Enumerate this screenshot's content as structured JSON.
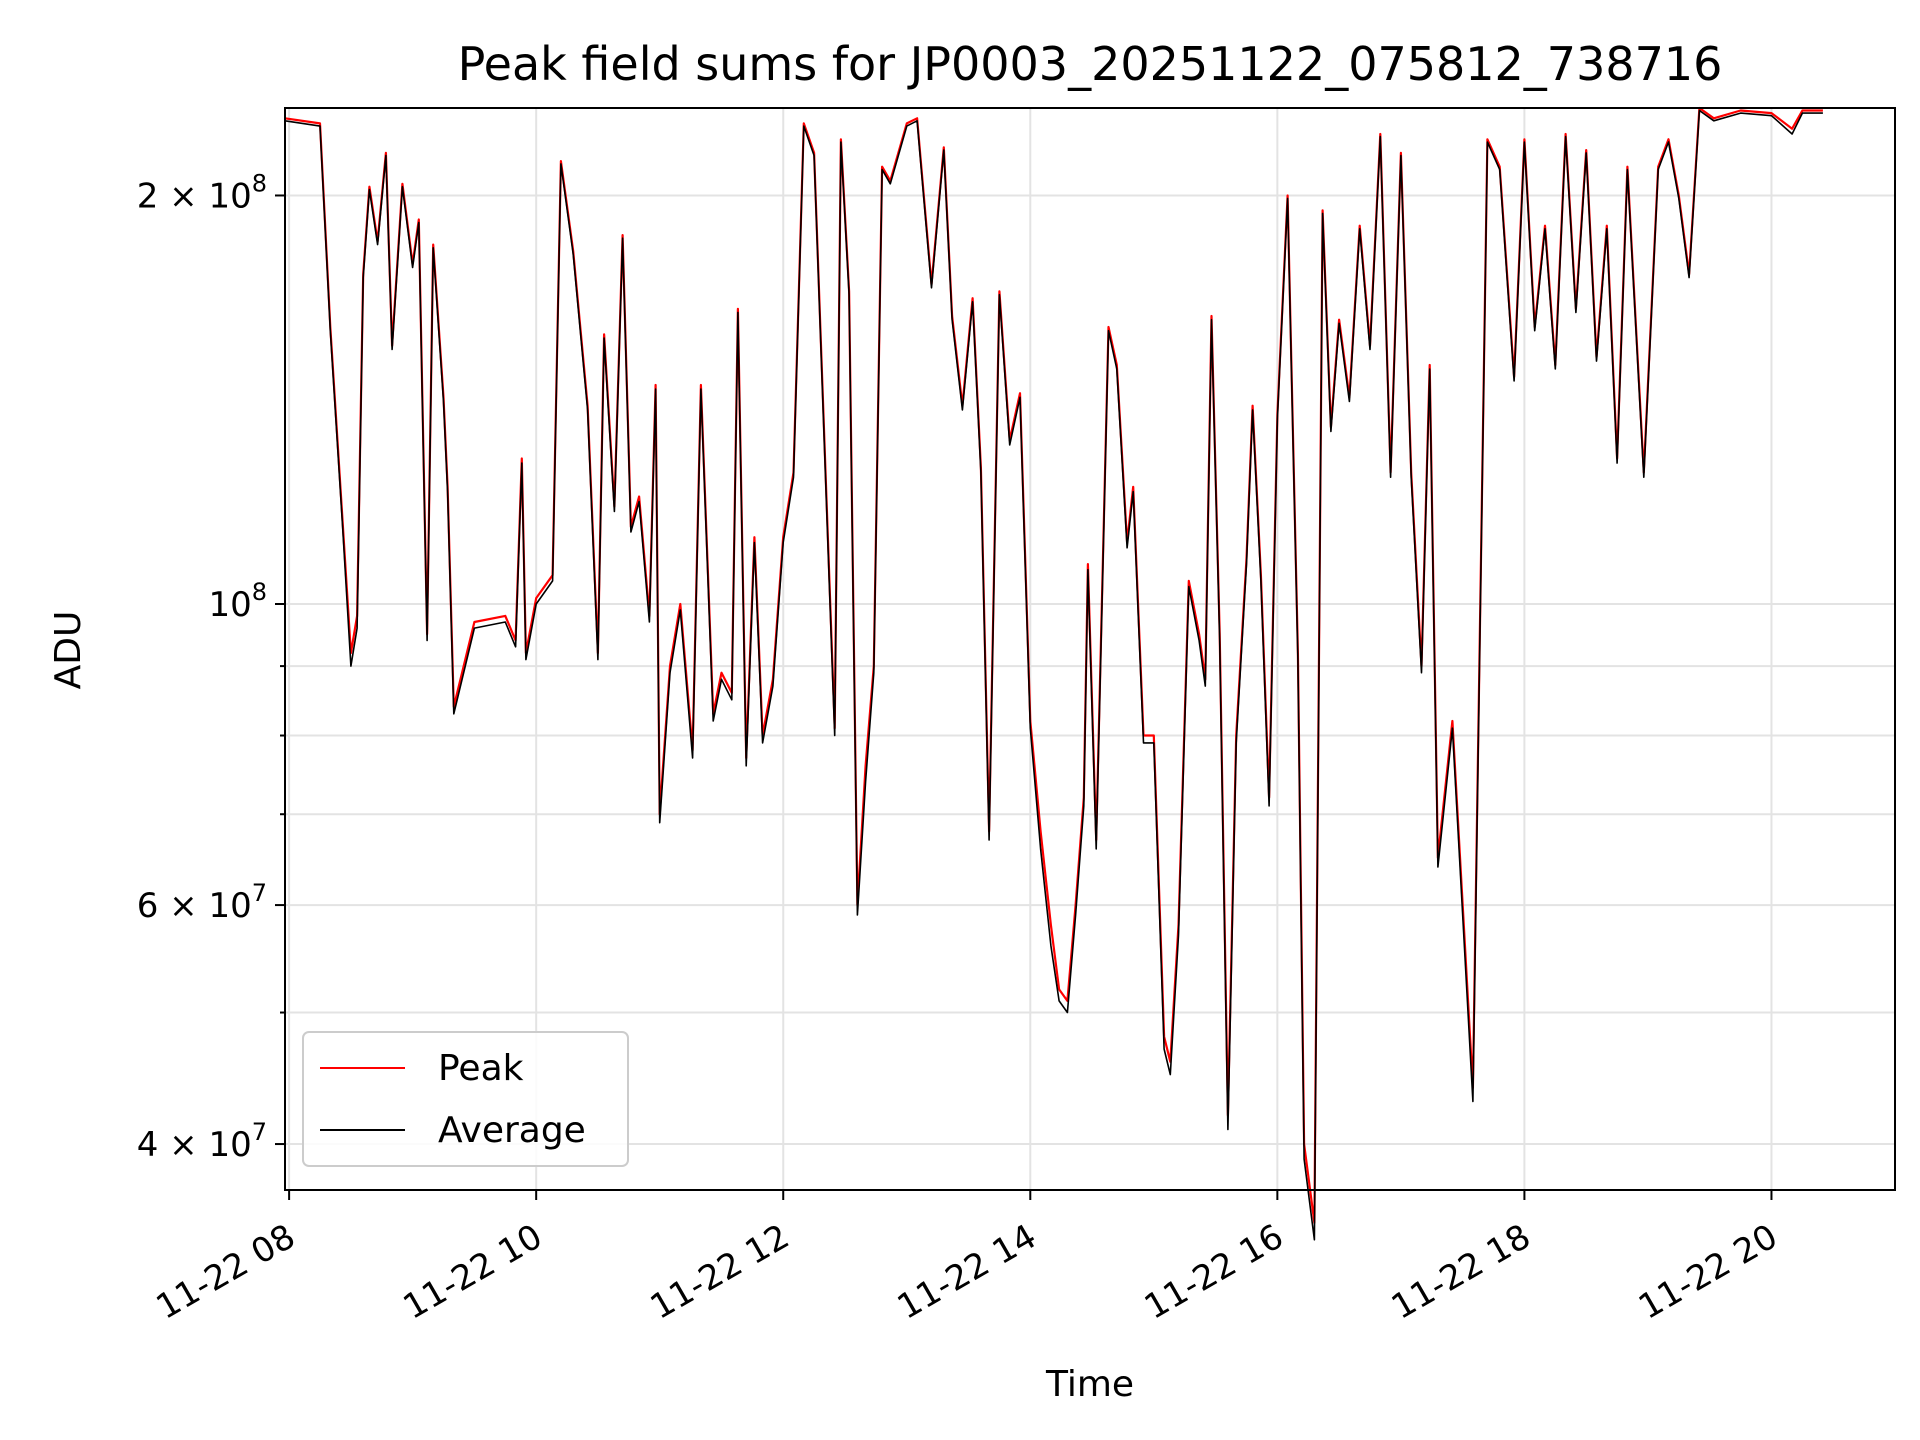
{
  "chart_data": {
    "type": "line",
    "title": "Peak field sums for JP0003_20251122_075812_738716",
    "xlabel": "Time",
    "ylabel": "ADU",
    "x_scale": "time",
    "y_scale": "log",
    "xlim": [
      "2025-11-22 07:58",
      "2025-11-22 21:00"
    ],
    "ylim": [
      37000000,
      232000000
    ],
    "grid": true,
    "legend_position": "lower-left",
    "x_ticks": [
      {
        "value": "2025-11-22 08:00",
        "label": "11-22 08"
      },
      {
        "value": "2025-11-22 10:00",
        "label": "11-22 10"
      },
      {
        "value": "2025-11-22 12:00",
        "label": "11-22 12"
      },
      {
        "value": "2025-11-22 14:00",
        "label": "11-22 14"
      },
      {
        "value": "2025-11-22 16:00",
        "label": "11-22 16"
      },
      {
        "value": "2025-11-22 18:00",
        "label": "11-22 18"
      },
      {
        "value": "2025-11-22 20:00",
        "label": "11-22 20"
      }
    ],
    "y_ticks": [
      {
        "value": 40000000,
        "base": "4 × 10",
        "exp": "7"
      },
      {
        "value": 60000000,
        "base": "6 × 10",
        "exp": "7"
      },
      {
        "value": 100000000,
        "base": "10",
        "exp": "8"
      },
      {
        "value": 200000000,
        "base": "2 × 10",
        "exp": "8"
      }
    ],
    "y_minor_ticks": [
      50000000,
      70000000,
      80000000,
      90000000
    ],
    "series": [
      {
        "name": "Peak",
        "color": "#ff0000",
        "x": [
          "2025-11-22 07:58",
          "2025-11-22 08:15",
          "2025-11-22 08:20",
          "2025-11-22 08:26",
          "2025-11-22 08:30",
          "2025-11-22 08:33",
          "2025-11-22 08:36",
          "2025-11-22 08:39",
          "2025-11-22 08:43",
          "2025-11-22 08:47",
          "2025-11-22 08:50",
          "2025-11-22 08:55",
          "2025-11-22 09:00",
          "2025-11-22 09:03",
          "2025-11-22 09:07",
          "2025-11-22 09:10",
          "2025-11-22 09:15",
          "2025-11-22 09:17",
          "2025-11-22 09:20",
          "2025-11-22 09:30",
          "2025-11-22 09:45",
          "2025-11-22 09:50",
          "2025-11-22 09:53",
          "2025-11-22 09:55",
          "2025-11-22 10:00",
          "2025-11-22 10:08",
          "2025-11-22 10:12",
          "2025-11-22 10:18",
          "2025-11-22 10:25",
          "2025-11-22 10:30",
          "2025-11-22 10:33",
          "2025-11-22 10:38",
          "2025-11-22 10:42",
          "2025-11-22 10:46",
          "2025-11-22 10:50",
          "2025-11-22 10:55",
          "2025-11-22 10:58",
          "2025-11-22 11:00",
          "2025-11-22 11:05",
          "2025-11-22 11:10",
          "2025-11-22 11:16",
          "2025-11-22 11:20",
          "2025-11-22 11:26",
          "2025-11-22 11:30",
          "2025-11-22 11:35",
          "2025-11-22 11:38",
          "2025-11-22 11:42",
          "2025-11-22 11:46",
          "2025-11-22 11:50",
          "2025-11-22 11:55",
          "2025-11-22 12:00",
          "2025-11-22 12:05",
          "2025-11-22 12:10",
          "2025-11-22 12:15",
          "2025-11-22 12:25",
          "2025-11-22 12:28",
          "2025-11-22 12:32",
          "2025-11-22 12:36",
          "2025-11-22 12:40",
          "2025-11-22 12:44",
          "2025-11-22 12:48",
          "2025-11-22 12:52",
          "2025-11-22 13:00",
          "2025-11-22 13:05",
          "2025-11-22 13:12",
          "2025-11-22 13:18",
          "2025-11-22 13:22",
          "2025-11-22 13:27",
          "2025-11-22 13:32",
          "2025-11-22 13:36",
          "2025-11-22 13:40",
          "2025-11-22 13:45",
          "2025-11-22 13:50",
          "2025-11-22 13:55",
          "2025-11-22 14:00",
          "2025-11-22 14:05",
          "2025-11-22 14:10",
          "2025-11-22 14:14",
          "2025-11-22 14:18",
          "2025-11-22 14:22",
          "2025-11-22 14:26",
          "2025-11-22 14:28",
          "2025-11-22 14:32",
          "2025-11-22 14:38",
          "2025-11-22 14:42",
          "2025-11-22 14:47",
          "2025-11-22 14:50",
          "2025-11-22 14:55",
          "2025-11-22 15:00",
          "2025-11-22 15:05",
          "2025-11-22 15:08",
          "2025-11-22 15:12",
          "2025-11-22 15:17",
          "2025-11-22 15:22",
          "2025-11-22 15:25",
          "2025-11-22 15:28",
          "2025-11-22 15:32",
          "2025-11-22 15:36",
          "2025-11-22 15:40",
          "2025-11-22 15:45",
          "2025-11-22 15:48",
          "2025-11-22 15:52",
          "2025-11-22 15:56",
          "2025-11-22 16:00",
          "2025-11-22 16:05",
          "2025-11-22 16:10",
          "2025-11-22 16:13",
          "2025-11-22 16:18",
          "2025-11-22 16:22",
          "2025-11-22 16:26",
          "2025-11-22 16:30",
          "2025-11-22 16:35",
          "2025-11-22 16:40",
          "2025-11-22 16:45",
          "2025-11-22 16:50",
          "2025-11-22 16:55",
          "2025-11-22 17:00",
          "2025-11-22 17:05",
          "2025-11-22 17:10",
          "2025-11-22 17:14",
          "2025-11-22 17:18",
          "2025-11-22 17:25",
          "2025-11-22 17:35",
          "2025-11-22 17:42",
          "2025-11-22 17:48",
          "2025-11-22 17:55",
          "2025-11-22 18:00",
          "2025-11-22 18:05",
          "2025-11-22 18:10",
          "2025-11-22 18:15",
          "2025-11-22 18:20",
          "2025-11-22 18:25",
          "2025-11-22 18:30",
          "2025-11-22 18:35",
          "2025-11-22 18:40",
          "2025-11-22 18:45",
          "2025-11-22 18:50",
          "2025-11-22 18:58",
          "2025-11-22 19:05",
          "2025-11-22 19:10",
          "2025-11-22 19:15",
          "2025-11-22 19:20",
          "2025-11-22 19:25",
          "2025-11-22 19:32",
          "2025-11-22 19:45",
          "2025-11-22 20:00",
          "2025-11-22 20:10",
          "2025-11-22 20:15",
          "2025-11-22 20:25"
        ],
        "y": [
          228000000,
          226000000,
          160000000,
          115000000,
          92000000,
          98000000,
          175000000,
          203000000,
          185000000,
          215000000,
          155000000,
          204000000,
          178000000,
          192000000,
          95000000,
          184000000,
          142000000,
          122000000,
          84000000,
          97000000,
          98000000,
          94000000,
          128000000,
          92000000,
          101000000,
          105000000,
          212000000,
          182000000,
          140000000,
          92000000,
          158000000,
          118000000,
          187000000,
          114000000,
          120000000,
          98000000,
          145000000,
          70000000,
          90000000,
          100000000,
          78000000,
          145000000,
          83000000,
          89000000,
          86000000,
          165000000,
          77000000,
          112000000,
          80000000,
          88000000,
          112000000,
          125000000,
          226000000,
          215000000,
          81000000,
          220000000,
          170000000,
          60000000,
          76000000,
          90000000,
          210000000,
          205000000,
          226000000,
          228000000,
          172000000,
          217000000,
          163000000,
          140000000,
          168000000,
          126000000,
          68000000,
          170000000,
          132000000,
          143000000,
          82000000,
          68000000,
          58000000,
          52000000,
          51000000,
          60000000,
          72000000,
          107000000,
          67000000,
          160000000,
          150000000,
          111000000,
          122000000,
          80000000,
          80000000,
          48000000,
          46000000,
          58000000,
          104000000,
          95000000,
          88000000,
          163000000,
          95000000,
          42000000,
          80000000,
          108000000,
          140000000,
          105000000,
          72000000,
          138000000,
          200000000,
          92000000,
          40000000,
          35000000,
          195000000,
          135000000,
          162000000,
          142000000,
          190000000,
          155000000,
          222000000,
          125000000,
          215000000,
          125000000,
          90000000,
          150000000,
          65000000,
          82000000,
          44000000,
          220000000,
          210000000,
          147000000,
          220000000,
          160000000,
          190000000,
          150000000,
          222000000,
          165000000,
          216000000,
          152000000,
          190000000,
          128000000,
          210000000,
          125000000,
          210000000,
          220000000,
          200000000,
          175000000,
          232000000,
          228000000,
          231000000,
          230000000,
          224000000,
          231000000,
          231000000
        ]
      },
      {
        "name": "Average",
        "color": "#000000",
        "x": [
          "2025-11-22 07:58",
          "2025-11-22 08:15",
          "2025-11-22 08:20",
          "2025-11-22 08:26",
          "2025-11-22 08:30",
          "2025-11-22 08:33",
          "2025-11-22 08:36",
          "2025-11-22 08:39",
          "2025-11-22 08:43",
          "2025-11-22 08:47",
          "2025-11-22 08:50",
          "2025-11-22 08:55",
          "2025-11-22 09:00",
          "2025-11-22 09:03",
          "2025-11-22 09:07",
          "2025-11-22 09:10",
          "2025-11-22 09:15",
          "2025-11-22 09:17",
          "2025-11-22 09:20",
          "2025-11-22 09:30",
          "2025-11-22 09:45",
          "2025-11-22 09:50",
          "2025-11-22 09:53",
          "2025-11-22 09:55",
          "2025-11-22 10:00",
          "2025-11-22 10:08",
          "2025-11-22 10:12",
          "2025-11-22 10:18",
          "2025-11-22 10:25",
          "2025-11-22 10:30",
          "2025-11-22 10:33",
          "2025-11-22 10:38",
          "2025-11-22 10:42",
          "2025-11-22 10:46",
          "2025-11-22 10:50",
          "2025-11-22 10:55",
          "2025-11-22 10:58",
          "2025-11-22 11:00",
          "2025-11-22 11:05",
          "2025-11-22 11:10",
          "2025-11-22 11:16",
          "2025-11-22 11:20",
          "2025-11-22 11:26",
          "2025-11-22 11:30",
          "2025-11-22 11:35",
          "2025-11-22 11:38",
          "2025-11-22 11:42",
          "2025-11-22 11:46",
          "2025-11-22 11:50",
          "2025-11-22 11:55",
          "2025-11-22 12:00",
          "2025-11-22 12:05",
          "2025-11-22 12:10",
          "2025-11-22 12:15",
          "2025-11-22 12:25",
          "2025-11-22 12:28",
          "2025-11-22 12:32",
          "2025-11-22 12:36",
          "2025-11-22 12:40",
          "2025-11-22 12:44",
          "2025-11-22 12:48",
          "2025-11-22 12:52",
          "2025-11-22 13:00",
          "2025-11-22 13:05",
          "2025-11-22 13:12",
          "2025-11-22 13:18",
          "2025-11-22 13:22",
          "2025-11-22 13:27",
          "2025-11-22 13:32",
          "2025-11-22 13:36",
          "2025-11-22 13:40",
          "2025-11-22 13:45",
          "2025-11-22 13:50",
          "2025-11-22 13:55",
          "2025-11-22 14:00",
          "2025-11-22 14:05",
          "2025-11-22 14:10",
          "2025-11-22 14:14",
          "2025-11-22 14:18",
          "2025-11-22 14:22",
          "2025-11-22 14:26",
          "2025-11-22 14:28",
          "2025-11-22 14:32",
          "2025-11-22 14:38",
          "2025-11-22 14:42",
          "2025-11-22 14:47",
          "2025-11-22 14:50",
          "2025-11-22 14:55",
          "2025-11-22 15:00",
          "2025-11-22 15:05",
          "2025-11-22 15:08",
          "2025-11-22 15:12",
          "2025-11-22 15:17",
          "2025-11-22 15:22",
          "2025-11-22 15:25",
          "2025-11-22 15:28",
          "2025-11-22 15:32",
          "2025-11-22 15:36",
          "2025-11-22 15:40",
          "2025-11-22 15:45",
          "2025-11-22 15:48",
          "2025-11-22 15:52",
          "2025-11-22 15:56",
          "2025-11-22 16:00",
          "2025-11-22 16:05",
          "2025-11-22 16:10",
          "2025-11-22 16:13",
          "2025-11-22 16:18",
          "2025-11-22 16:22",
          "2025-11-22 16:26",
          "2025-11-22 16:30",
          "2025-11-22 16:35",
          "2025-11-22 16:40",
          "2025-11-22 16:45",
          "2025-11-22 16:50",
          "2025-11-22 16:55",
          "2025-11-22 17:00",
          "2025-11-22 17:05",
          "2025-11-22 17:10",
          "2025-11-22 17:14",
          "2025-11-22 17:18",
          "2025-11-22 17:25",
          "2025-11-22 17:35",
          "2025-11-22 17:42",
          "2025-11-22 17:48",
          "2025-11-22 17:55",
          "2025-11-22 18:00",
          "2025-11-22 18:05",
          "2025-11-22 18:10",
          "2025-11-22 18:15",
          "2025-11-22 18:20",
          "2025-11-22 18:25",
          "2025-11-22 18:30",
          "2025-11-22 18:35",
          "2025-11-22 18:40",
          "2025-11-22 18:45",
          "2025-11-22 18:50",
          "2025-11-22 18:58",
          "2025-11-22 19:05",
          "2025-11-22 19:10",
          "2025-11-22 19:15",
          "2025-11-22 19:20",
          "2025-11-22 19:25",
          "2025-11-22 19:32",
          "2025-11-22 19:45",
          "2025-11-22 20:00",
          "2025-11-22 20:10",
          "2025-11-22 20:15",
          "2025-11-22 20:25"
        ],
        "y": [
          227000000,
          225000000,
          159000000,
          114000000,
          90000000,
          96000000,
          174000000,
          202000000,
          184000000,
          214000000,
          154000000,
          203000000,
          177000000,
          191000000,
          94000000,
          183000000,
          141000000,
          121000000,
          83000000,
          96000000,
          97000000,
          93000000,
          127000000,
          91000000,
          100000000,
          104000000,
          211000000,
          181000000,
          139000000,
          91000000,
          157000000,
          117000000,
          186000000,
          113000000,
          119000000,
          97000000,
          144000000,
          69000000,
          89000000,
          99000000,
          77000000,
          144000000,
          82000000,
          88000000,
          85000000,
          164000000,
          76000000,
          111000000,
          79000000,
          87000000,
          111000000,
          124000000,
          225000000,
          214000000,
          80000000,
          219000000,
          169000000,
          59000000,
          74000000,
          89000000,
          209000000,
          204000000,
          225000000,
          227000000,
          171000000,
          216000000,
          162000000,
          139000000,
          167000000,
          125000000,
          67000000,
          169000000,
          131000000,
          142000000,
          81000000,
          66000000,
          56000000,
          51000000,
          50000000,
          59000000,
          71000000,
          106000000,
          66000000,
          159000000,
          149000000,
          110000000,
          121000000,
          79000000,
          79000000,
          47000000,
          45000000,
          57000000,
          103000000,
          94000000,
          87000000,
          162000000,
          94000000,
          41000000,
          79000000,
          107000000,
          139000000,
          104000000,
          71000000,
          137000000,
          199000000,
          91000000,
          39000000,
          34000000,
          194000000,
          134000000,
          161000000,
          141000000,
          189000000,
          154000000,
          221000000,
          124000000,
          214000000,
          124000000,
          89000000,
          149000000,
          64000000,
          81000000,
          43000000,
          219000000,
          209000000,
          146000000,
          219000000,
          159000000,
          189000000,
          149000000,
          221000000,
          164000000,
          215000000,
          151000000,
          189000000,
          127000000,
          209000000,
          124000000,
          209000000,
          219000000,
          199000000,
          174000000,
          231000000,
          227000000,
          230000000,
          229000000,
          222000000,
          230000000,
          230000000
        ]
      }
    ]
  }
}
